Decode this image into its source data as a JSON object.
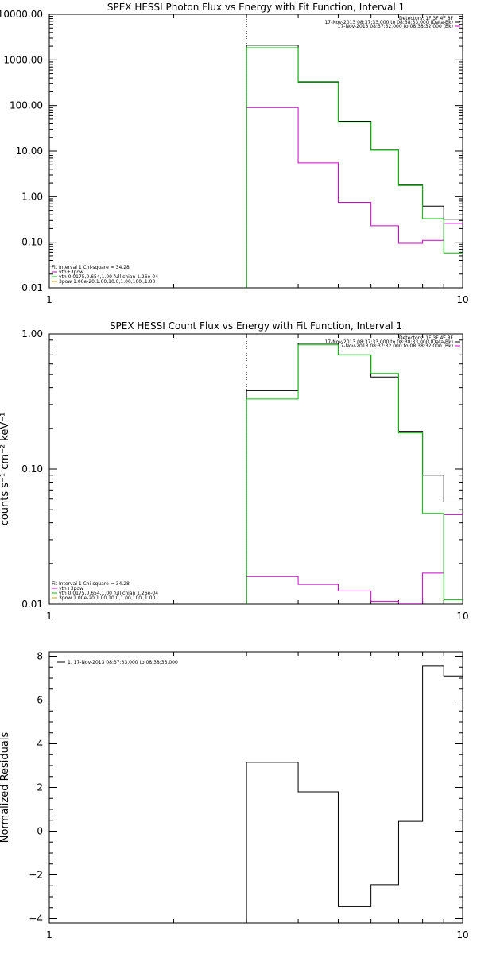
{
  "chart_data": [
    {
      "type": "line",
      "title": "SPEX HESSI Photon Flux vs Energy with Fit Function, Interval 1",
      "x_scale": "log",
      "y_scale": "log",
      "xlim": [
        1,
        10
      ],
      "ylim": [
        0.01,
        10000
      ],
      "x_ticks": [
        {
          "v": 1,
          "label": "1"
        },
        {
          "v": 10,
          "label": "10"
        }
      ],
      "y_ticks": [
        {
          "v": 0.01,
          "label": "0.01"
        },
        {
          "v": 0.1,
          "label": "0.10"
        },
        {
          "v": 1,
          "label": "1.00"
        },
        {
          "v": 10,
          "label": "10.00"
        },
        {
          "v": 100,
          "label": "100.00"
        },
        {
          "v": 1000,
          "label": "1000.00"
        },
        {
          "v": 10000,
          "label": "10000.00"
        }
      ],
      "vline": 3,
      "header_lines": [
        "Detectors: 1F 3F 4F 8F",
        "17-Nov-2013 08:37:33.000 to 08:38:33.000 (Data-Bk)",
        "17-Nov-2013 08:37:32.000 to 08:38:32.000 (Bk)"
      ],
      "fit_lines": [
        "Fit Interval 1   Chi-square = 34.28",
        "vth+3pow",
        "vth 0.0175,0.654,1.00  full chian 1.26e-04",
        "3pow 1.00e-20,1.00,10.0,1.00,100.,1.00"
      ],
      "edges": [
        3,
        4,
        5,
        6,
        7,
        8,
        9,
        10
      ],
      "series": [
        {
          "name": "Data-Bk",
          "color": "#000000",
          "values": [
            2100,
            330,
            45,
            10.5,
            1.8,
            0.62,
            0.32
          ]
        },
        {
          "name": "Bk",
          "color": "#d000d0",
          "values": [
            90,
            5.5,
            0.75,
            0.23,
            0.095,
            0.11,
            0.26
          ]
        },
        {
          "name": "vth+3pow",
          "color": "#00c000",
          "values": [
            1850,
            320,
            43,
            10.5,
            1.75,
            0.33,
            0.058
          ]
        }
      ]
    },
    {
      "type": "line",
      "title": "SPEX HESSI Count Flux vs Energy with Fit Function, Interval 1",
      "ylabel": "counts s⁻¹ cm⁻² keV⁻¹",
      "x_scale": "log",
      "y_scale": "log",
      "xlim": [
        1,
        10
      ],
      "ylim": [
        0.01,
        1
      ],
      "x_ticks": [
        {
          "v": 1,
          "label": "1"
        },
        {
          "v": 10,
          "label": "10"
        }
      ],
      "y_ticks": [
        {
          "v": 0.01,
          "label": "0.01"
        },
        {
          "v": 0.1,
          "label": "0.10"
        },
        {
          "v": 1,
          "label": "1.00"
        }
      ],
      "vline": 3,
      "header_lines": [
        "Detectors: 1F 3F 4F 8F",
        "17-Nov-2013 08:37:33.000 to 08:38:33.000 (Data-Bk)",
        "17-Nov-2013 08:37:32.000 to 08:38:32.000 (Bk)"
      ],
      "fit_lines": [
        "Fit Interval 1   Chi-square = 34.28",
        "vth+3pow",
        "vth 0.0175,0.654,1.00  full chian 1.26e-04",
        "3pow 1.00e-20,1.00,10.0,1.00,100.,1.00"
      ],
      "edges": [
        3,
        4,
        5,
        6,
        7,
        8,
        9,
        10
      ],
      "series": [
        {
          "name": "Data-Bk",
          "color": "#000000",
          "values": [
            0.38,
            0.85,
            0.7,
            0.48,
            0.19,
            0.09,
            0.057
          ]
        },
        {
          "name": "Bk",
          "color": "#d000d0",
          "values": [
            0.016,
            0.014,
            0.0125,
            0.0105,
            0.0102,
            0.017,
            0.046
          ]
        },
        {
          "name": "vth+3pow",
          "color": "#00c000",
          "values": [
            0.33,
            0.83,
            0.7,
            0.51,
            0.185,
            0.047,
            0.0108
          ]
        }
      ]
    },
    {
      "type": "line",
      "title": "",
      "ylabel": "Normalized Residuals",
      "x_scale": "log",
      "y_scale": "linear",
      "xlim": [
        1,
        10
      ],
      "ylim": [
        -4.2,
        8.2
      ],
      "x_ticks": [
        {
          "v": 1,
          "label": "1"
        },
        {
          "v": 10,
          "label": "10"
        }
      ],
      "y_ticks": [
        {
          "v": -4,
          "label": "−4"
        },
        {
          "v": -2,
          "label": "−2"
        },
        {
          "v": 0,
          "label": "0"
        },
        {
          "v": 2,
          "label": "2"
        },
        {
          "v": 4,
          "label": "4"
        },
        {
          "v": 6,
          "label": "6"
        },
        {
          "v": 8,
          "label": "8"
        }
      ],
      "legend": "1. 17-Nov-2013 08:37:33.000 to 08:38:33.000",
      "edges": [
        3,
        4,
        5,
        6,
        7,
        8,
        9,
        10
      ],
      "series": [
        {
          "name": "Residuals",
          "color": "#000000",
          "values": [
            3.15,
            1.8,
            -3.45,
            -2.45,
            0.45,
            7.55,
            7.1
          ]
        }
      ]
    }
  ]
}
